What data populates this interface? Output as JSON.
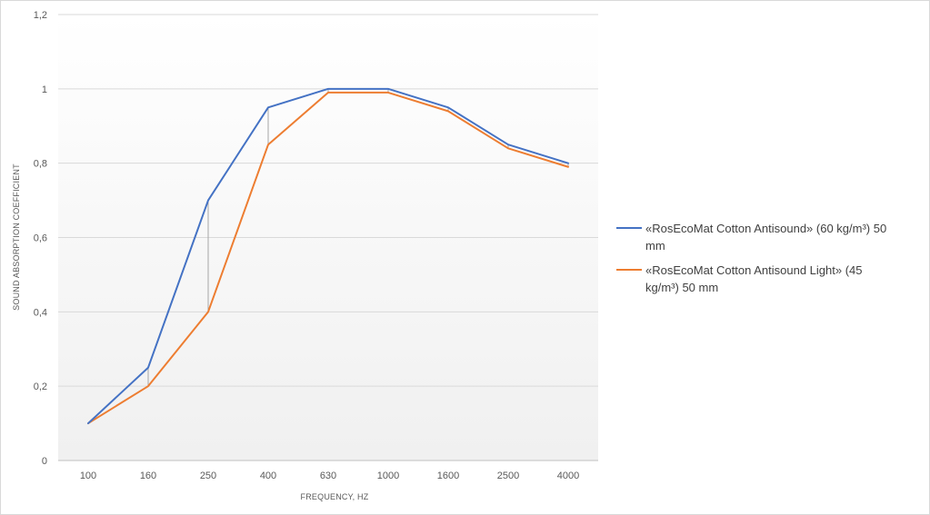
{
  "chart_data": {
    "type": "line",
    "xlabel": "FREQUENCY, HZ",
    "ylabel": "SOUND ABSORPTION COEFFICIENT",
    "categories": [
      "100",
      "160",
      "250",
      "400",
      "630",
      "1000",
      "1600",
      "2500",
      "4000"
    ],
    "y_tick_labels": [
      "0",
      "0,2",
      "0,4",
      "0,6",
      "0,8",
      "1",
      "1,2"
    ],
    "ylim": [
      0,
      1.2
    ],
    "grid": true,
    "legend_position": "right",
    "drop_lines": true,
    "series": [
      {
        "name_lines": [
          "«RosEcoMat Cotton Antisound» (60 kg/m³) 50",
          "mm"
        ],
        "color": "#4472c4",
        "values": [
          0.1,
          0.25,
          0.7,
          0.95,
          1.0,
          1.0,
          0.95,
          0.85,
          0.8
        ]
      },
      {
        "name_lines": [
          "«RosEcoMat Cotton Antisound Light» (45",
          "kg/m³) 50 mm"
        ],
        "color": "#ed7d31",
        "values": [
          0.1,
          0.2,
          0.4,
          0.85,
          0.99,
          0.99,
          0.94,
          0.84,
          0.79
        ]
      }
    ]
  }
}
